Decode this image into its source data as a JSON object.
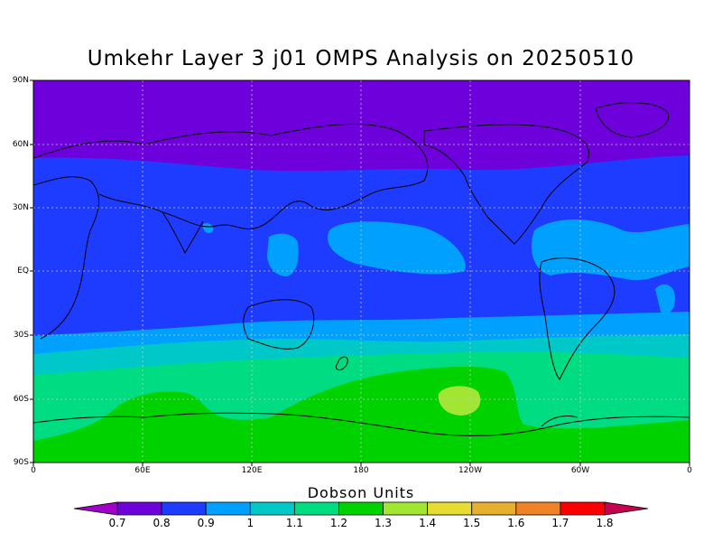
{
  "title": "Umkehr Layer 3 j01 OMPS Analysis on 20250510",
  "lat_labels": [
    "90N",
    "60N",
    "30N",
    "EQ",
    "30S",
    "60S",
    "90S"
  ],
  "lon_labels": [
    "0",
    "60E",
    "120E",
    "180",
    "120W",
    "60W",
    "0"
  ],
  "colorbar": {
    "title": "Dobson Units",
    "labels": [
      "0.7",
      "0.8",
      "0.9",
      "1",
      "1.1",
      "1.2",
      "1.3",
      "1.4",
      "1.5",
      "1.6",
      "1.7",
      "1.8"
    ],
    "colors": [
      "#a000c8",
      "#6e00dc",
      "#1e3cff",
      "#00a0ff",
      "#00c8c8",
      "#00dc82",
      "#00d200",
      "#a0e632",
      "#e6dc32",
      "#e6af2d",
      "#f08228",
      "#fa0000",
      "#c80050"
    ]
  },
  "chart_data": {
    "type": "heatmap",
    "title": "Umkehr Layer 3 j01 OMPS Analysis on 20250510",
    "xlabel": "",
    "ylabel": "",
    "x_ticks": [
      "0",
      "60E",
      "120E",
      "180",
      "120W",
      "60W",
      "0"
    ],
    "y_ticks": [
      "90N",
      "60N",
      "30N",
      "EQ",
      "30S",
      "60S",
      "90S"
    ],
    "units": "Dobson Units",
    "levels": [
      0.7,
      0.8,
      0.9,
      1,
      1.1,
      1.2,
      1.3,
      1.4,
      1.5,
      1.6,
      1.7,
      1.8
    ],
    "grid": true
  }
}
